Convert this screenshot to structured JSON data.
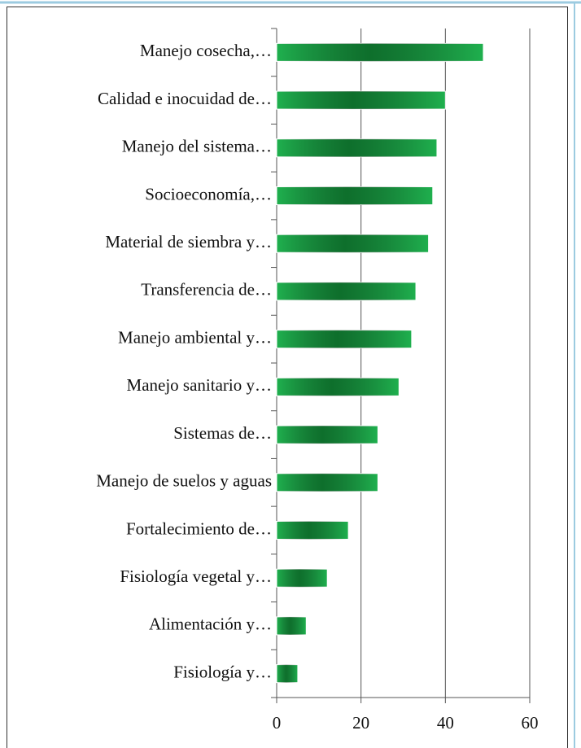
{
  "chart_data": {
    "type": "bar",
    "orientation": "horizontal",
    "categories": [
      "Manejo cosecha,…",
      "Calidad e inocuidad de…",
      "Manejo del sistema…",
      "Socioeconomía,…",
      "Material de siembra y…",
      "Transferencia de…",
      "Manejo ambiental y…",
      "Manejo sanitario y…",
      "Sistemas de…",
      "Manejo de suelos y aguas",
      "Fortalecimiento de…",
      "Fisiología vegetal y…",
      "Alimentación y…",
      "Fisiología y…"
    ],
    "values": [
      49,
      40,
      38,
      37,
      36,
      33,
      32,
      29,
      24,
      24,
      17,
      12,
      7,
      5
    ],
    "color": "#1fb04e",
    "xlim": [
      0,
      60
    ],
    "xticks": [
      0,
      20,
      40,
      60
    ],
    "grid": true
  }
}
